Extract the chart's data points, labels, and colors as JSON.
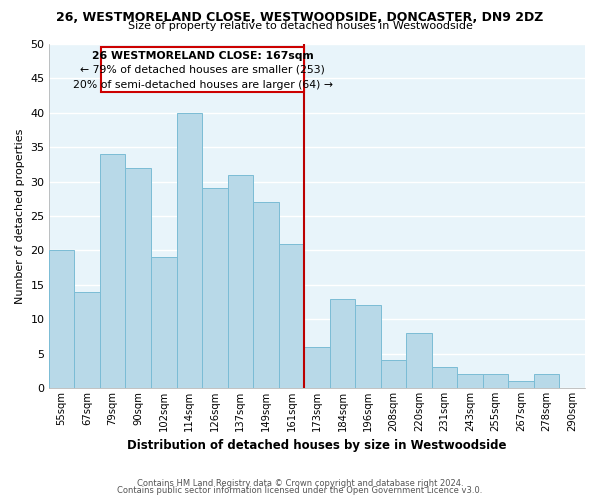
{
  "title": "26, WESTMORELAND CLOSE, WESTWOODSIDE, DONCASTER, DN9 2DZ",
  "subtitle": "Size of property relative to detached houses in Westwoodside",
  "xlabel": "Distribution of detached houses by size in Westwoodside",
  "ylabel": "Number of detached properties",
  "bar_labels": [
    "55sqm",
    "67sqm",
    "79sqm",
    "90sqm",
    "102sqm",
    "114sqm",
    "126sqm",
    "137sqm",
    "149sqm",
    "161sqm",
    "173sqm",
    "184sqm",
    "196sqm",
    "208sqm",
    "220sqm",
    "231sqm",
    "243sqm",
    "255sqm",
    "267sqm",
    "278sqm",
    "290sqm"
  ],
  "bar_values": [
    20,
    14,
    34,
    32,
    19,
    40,
    29,
    31,
    27,
    21,
    6,
    13,
    12,
    4,
    8,
    3,
    2,
    2,
    1,
    2,
    0
  ],
  "bar_color": "#b8d9e8",
  "bar_edge_color": "#7bbcd5",
  "grid_color": "#d0e8f0",
  "annotation_title": "26 WESTMORELAND CLOSE: 167sqm",
  "annotation_line1": "← 79% of detached houses are smaller (253)",
  "annotation_line2": "20% of semi-detached houses are larger (64) →",
  "annotation_box_color": "#ffffff",
  "annotation_box_edge": "#cc0000",
  "ref_line_color": "#bb0000",
  "ylim": [
    0,
    50
  ],
  "yticks": [
    0,
    5,
    10,
    15,
    20,
    25,
    30,
    35,
    40,
    45,
    50
  ],
  "footer1": "Contains HM Land Registry data © Crown copyright and database right 2024.",
  "footer2": "Contains public sector information licensed under the Open Government Licence v3.0.",
  "bg_color": "#e8f4fa"
}
